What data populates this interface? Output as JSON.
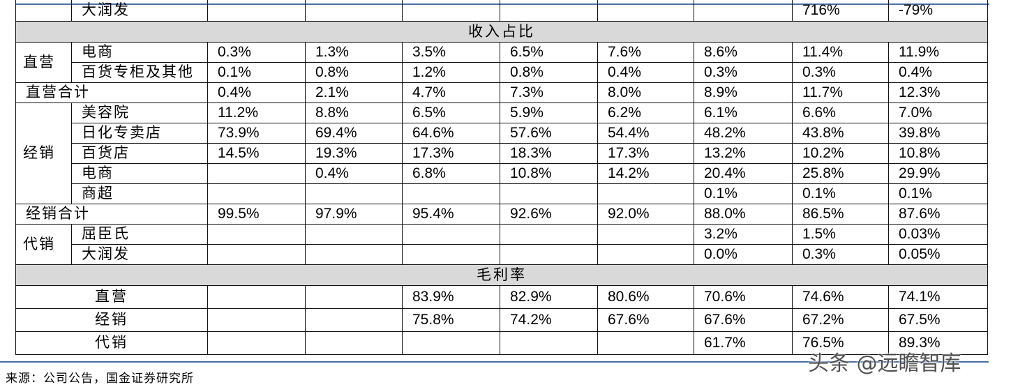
{
  "table": {
    "top_row": {
      "label": "大润发",
      "values": [
        "",
        "",
        "",
        "",
        "",
        "",
        "716%",
        "-79%"
      ]
    },
    "revenue_section": {
      "title": "收入占比",
      "direct_group": "直营",
      "direct_rows": [
        {
          "label": "电商",
          "values": [
            "0.3%",
            "1.3%",
            "3.5%",
            "6.5%",
            "7.6%",
            "8.6%",
            "11.4%",
            "11.9%"
          ]
        },
        {
          "label": "百货专柜及其他",
          "values": [
            "0.1%",
            "0.8%",
            "1.2%",
            "0.8%",
            "0.4%",
            "0.3%",
            "0.3%",
            "0.4%"
          ]
        }
      ],
      "direct_total": {
        "label": "直营合计",
        "values": [
          "0.4%",
          "2.1%",
          "4.7%",
          "7.3%",
          "8.0%",
          "8.9%",
          "11.7%",
          "12.3%"
        ]
      },
      "distrib_group": "经销",
      "distrib_rows": [
        {
          "label": "美容院",
          "values": [
            "11.2%",
            "8.8%",
            "6.5%",
            "5.9%",
            "6.2%",
            "6.1%",
            "6.6%",
            "7.0%"
          ]
        },
        {
          "label": "日化专卖店",
          "values": [
            "73.9%",
            "69.4%",
            "64.6%",
            "57.6%",
            "54.4%",
            "48.2%",
            "43.8%",
            "39.8%"
          ]
        },
        {
          "label": "百货店",
          "values": [
            "14.5%",
            "19.3%",
            "17.3%",
            "18.3%",
            "17.3%",
            "13.2%",
            "10.2%",
            "10.8%"
          ]
        },
        {
          "label": "电商",
          "values": [
            "",
            "0.4%",
            "6.8%",
            "10.8%",
            "14.2%",
            "20.4%",
            "25.8%",
            "29.9%"
          ]
        },
        {
          "label": "商超",
          "values": [
            "",
            "",
            "",
            "",
            "",
            "0.1%",
            "0.1%",
            "0.1%"
          ]
        }
      ],
      "distrib_total": {
        "label": "经销合计",
        "values": [
          "99.5%",
          "97.9%",
          "95.4%",
          "92.6%",
          "92.0%",
          "88.0%",
          "86.5%",
          "87.6%"
        ]
      },
      "consign_group": "代销",
      "consign_rows": [
        {
          "label": "屈臣氏",
          "values": [
            "",
            "",
            "",
            "",
            "",
            "3.2%",
            "1.5%",
            "0.03%"
          ]
        },
        {
          "label": "大润发",
          "values": [
            "",
            "",
            "",
            "",
            "",
            "0.0%",
            "0.3%",
            "0.05%"
          ]
        }
      ]
    },
    "margin_section": {
      "title": "毛利率",
      "rows": [
        {
          "label": "直营",
          "values": [
            "",
            "",
            "83.9%",
            "82.9%",
            "80.6%",
            "70.6%",
            "74.6%",
            "74.1%"
          ]
        },
        {
          "label": "经销",
          "values": [
            "",
            "",
            "75.8%",
            "74.2%",
            "67.6%",
            "67.6%",
            "67.2%",
            "67.5%"
          ]
        },
        {
          "label": "代销",
          "values": [
            "",
            "",
            "",
            "",
            "",
            "61.7%",
            "76.5%",
            "89.3%"
          ]
        }
      ]
    }
  },
  "source_note": "来源：公司公告，国金证券研究所",
  "watermark": "头条 @远瞻智库",
  "colors": {
    "section_fill": "#d9d9d9",
    "rule_blue": "#4a6fa5"
  }
}
